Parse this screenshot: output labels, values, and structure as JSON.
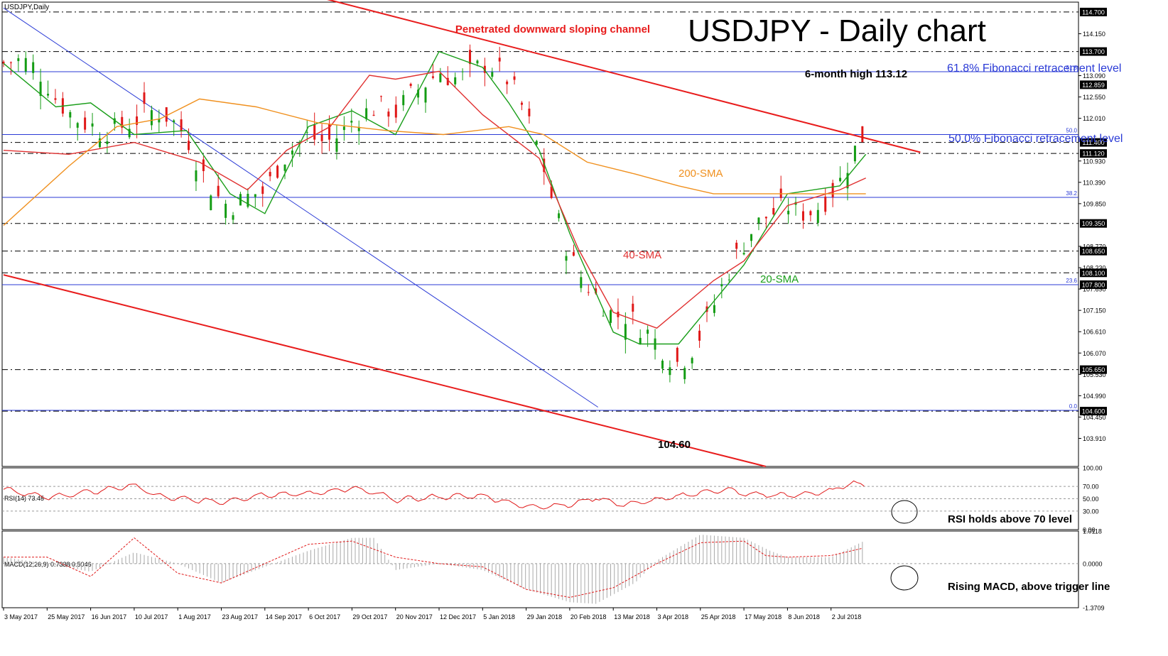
{
  "chart_data": {
    "type": "line",
    "symbol_label": "USDJPY,Daily",
    "title": "USDJPY - Daily chart",
    "ylim": [
      103.2,
      114.95
    ],
    "date_ticks": [
      "3 May 2017",
      "25 May 2017",
      "16 Jun 2017",
      "10 Jul 2017",
      "1 Aug 2017",
      "23 Aug 2017",
      "14 Sep 2017",
      "6 Oct 2017",
      "29 Oct 2017",
      "20 Nov 2017",
      "12 Dec 2017",
      "5 Jan 2018",
      "29 Jan 2018",
      "20 Feb 2018",
      "13 Mar 2018",
      "3 Apr 2018",
      "25 Apr 2018",
      "17 May 2018",
      "8 Jun 2018",
      "2 Jul 2018"
    ],
    "price_ticks": [
      "114.150",
      "113.090",
      "112.550",
      "112.010",
      "110.930",
      "110.390",
      "109.850",
      "108.770",
      "108.230",
      "107.690",
      "107.150",
      "106.610",
      "106.070",
      "105.530",
      "104.990",
      "104.450",
      "103.910"
    ],
    "price_ticks_values": [
      114.15,
      113.09,
      112.55,
      112.01,
      110.93,
      110.39,
      109.85,
      108.77,
      108.23,
      107.69,
      107.15,
      106.61,
      106.07,
      105.53,
      104.99,
      104.45,
      103.91
    ],
    "price_levels": [
      {
        "label": "114.700",
        "value": 114.7
      },
      {
        "label": "113.700",
        "value": 113.7
      },
      {
        "label": "111.400",
        "value": 111.4
      },
      {
        "label": "111.120",
        "value": 111.12
      },
      {
        "label": "109.350",
        "value": 109.35
      },
      {
        "label": "108.650",
        "value": 108.65
      },
      {
        "label": "108.100",
        "value": 108.1
      },
      {
        "label": "107.800",
        "value": 107.8
      },
      {
        "label": "105.650",
        "value": 105.65
      },
      {
        "label": "104.600",
        "value": 104.6
      }
    ],
    "current_price": {
      "label": "112.859",
      "value": 112.859
    },
    "fibonacci": [
      {
        "label": "61.8",
        "value": 113.19
      },
      {
        "label": "50.0",
        "value": 111.6
      },
      {
        "label": "38.2",
        "value": 110.01
      },
      {
        "label": "23.6",
        "value": 107.8
      },
      {
        "label": "0.0",
        "value": 104.62
      }
    ],
    "series": [
      {
        "name": "20-SMA",
        "color": "#1a9e1a",
        "points": [
          [
            0,
            113.4
          ],
          [
            1.2,
            112.3
          ],
          [
            2,
            112.4
          ],
          [
            3,
            111.6
          ],
          [
            4.2,
            111.7
          ],
          [
            5.2,
            110.1
          ],
          [
            6,
            109.6
          ],
          [
            7,
            111.8
          ],
          [
            8,
            112.2
          ],
          [
            9,
            111.6
          ],
          [
            10,
            113.7
          ],
          [
            11,
            113.3
          ],
          [
            11.6,
            112.4
          ],
          [
            12.3,
            111.2
          ],
          [
            13,
            109.1
          ],
          [
            14,
            106.6
          ],
          [
            14.6,
            106.3
          ],
          [
            15.5,
            106.3
          ],
          [
            17,
            108.3
          ],
          [
            18,
            110.1
          ],
          [
            19.2,
            110.3
          ],
          [
            19.8,
            111.1
          ]
        ]
      },
      {
        "name": "40-SMA",
        "color": "#e03030",
        "points": [
          [
            0,
            111.2
          ],
          [
            1.5,
            111.1
          ],
          [
            3,
            111.4
          ],
          [
            4.5,
            110.9
          ],
          [
            5.6,
            110.2
          ],
          [
            6.5,
            111.2
          ],
          [
            7.5,
            111.8
          ],
          [
            8.4,
            113.1
          ],
          [
            9,
            113.0
          ],
          [
            10,
            113.2
          ],
          [
            11,
            112.1
          ],
          [
            12.3,
            111.0
          ],
          [
            13.2,
            108.7
          ],
          [
            14,
            107.1
          ],
          [
            15,
            106.7
          ],
          [
            16.3,
            107.9
          ],
          [
            17,
            108.4
          ],
          [
            18,
            109.8
          ],
          [
            19.2,
            110.2
          ],
          [
            19.8,
            110.5
          ]
        ]
      },
      {
        "name": "200-SMA",
        "color": "#f0901e",
        "points": [
          [
            0,
            109.3
          ],
          [
            1.5,
            110.8
          ],
          [
            2.6,
            111.8
          ],
          [
            3.6,
            112.0
          ],
          [
            4.5,
            112.5
          ],
          [
            5.8,
            112.3
          ],
          [
            7.2,
            111.9
          ],
          [
            8.8,
            111.7
          ],
          [
            10.1,
            111.6
          ],
          [
            11.6,
            111.8
          ],
          [
            12.4,
            111.6
          ],
          [
            13.4,
            110.9
          ],
          [
            14.5,
            110.6
          ],
          [
            15.5,
            110.3
          ],
          [
            16.3,
            110.1
          ],
          [
            17.3,
            110.1
          ],
          [
            18.5,
            110.1
          ],
          [
            19.8,
            110.1
          ]
        ]
      }
    ],
    "channel_lines": [
      {
        "name": "channel-upper",
        "points": [
          [
            6.8,
            115.2
          ],
          [
            21.05,
            111.15
          ]
        ]
      },
      {
        "name": "channel-lower",
        "points": [
          [
            0,
            108.05
          ],
          [
            17.5,
            103.2
          ]
        ]
      },
      {
        "name": "diagonal-support",
        "points": [
          [
            0,
            114.8
          ],
          [
            13.65,
            104.7
          ]
        ]
      }
    ],
    "annotations": {
      "channel": "Penetrated downward sloping channel",
      "high": "6-month high 113.12",
      "fib618": "61.8% Fibonacci retracement level",
      "fib50": "50.0% Fibonacci retracement level",
      "sma200": "200-SMA",
      "sma40": "40-SMA",
      "sma20": "20-SMA",
      "low": "104.60"
    },
    "rsi": {
      "label": "RSI(14) 73.45",
      "ylim": [
        0,
        100
      ],
      "ticks": [
        {
          "label": "100.00",
          "value": 100
        },
        {
          "label": "70.00",
          "value": 70
        },
        {
          "label": "50.00",
          "value": 50
        },
        {
          "label": "30.00",
          "value": 30
        },
        {
          "label": "0.00",
          "value": 0
        }
      ],
      "guides": [
        70,
        50,
        30
      ],
      "values": [
        [
          0,
          66
        ],
        [
          1,
          52
        ],
        [
          2,
          61
        ],
        [
          3,
          72
        ],
        [
          3.5,
          55
        ],
        [
          4,
          50
        ],
        [
          5,
          45
        ],
        [
          6,
          57
        ],
        [
          7,
          58
        ],
        [
          8,
          67
        ],
        [
          8.6,
          58
        ],
        [
          9,
          48
        ],
        [
          10,
          53
        ],
        [
          11,
          55
        ],
        [
          12,
          37
        ],
        [
          13,
          40
        ],
        [
          13.6,
          52
        ],
        [
          14.2,
          40
        ],
        [
          15,
          48
        ],
        [
          16,
          60
        ],
        [
          16.6,
          65
        ],
        [
          17,
          58
        ],
        [
          18,
          55
        ],
        [
          19,
          62
        ],
        [
          19.4,
          75
        ],
        [
          19.8,
          73
        ]
      ],
      "annotation": "RSI holds above 70 level"
    },
    "macd": {
      "label": "MACD(12,26,9) 0.7338 0.5046",
      "ylim": [
        -1.3709,
        1.0118
      ],
      "ticks": [
        {
          "label": "1.0118",
          "value": 1.0118
        },
        {
          "label": "0.0000",
          "value": 0.0
        },
        {
          "label": "-1.3709",
          "value": -1.3709
        }
      ],
      "histogram": [
        [
          0,
          0.2
        ],
        [
          1,
          0.0
        ],
        [
          2,
          -0.25
        ],
        [
          3,
          0.35
        ],
        [
          4,
          0.0
        ],
        [
          5,
          -0.6
        ],
        [
          6,
          -0.1
        ],
        [
          7,
          0.4
        ],
        [
          8,
          0.8
        ],
        [
          8.5,
          0.8
        ],
        [
          9,
          -0.2
        ],
        [
          10,
          0.0
        ],
        [
          11,
          -0.2
        ],
        [
          12,
          -0.8
        ],
        [
          13,
          -1.2
        ],
        [
          13.6,
          -1.25
        ],
        [
          14.5,
          -0.6
        ],
        [
          15,
          0.1
        ],
        [
          16,
          0.9
        ],
        [
          17,
          0.8
        ],
        [
          17.6,
          0.4
        ],
        [
          18,
          0.2
        ],
        [
          19,
          0.2
        ],
        [
          19.8,
          0.73
        ]
      ],
      "signal": [
        [
          0,
          0.2
        ],
        [
          1,
          0.2
        ],
        [
          2,
          -0.4
        ],
        [
          3,
          0.8
        ],
        [
          4,
          -0.3
        ],
        [
          5,
          -0.6
        ],
        [
          6,
          0.0
        ],
        [
          7,
          0.6
        ],
        [
          8,
          0.7
        ],
        [
          9,
          0.2
        ],
        [
          10,
          0.0
        ],
        [
          11,
          -0.1
        ],
        [
          12,
          -0.8
        ],
        [
          13,
          -1.05
        ],
        [
          14,
          -0.75
        ],
        [
          15,
          0.0
        ],
        [
          16,
          0.65
        ],
        [
          17,
          0.7
        ],
        [
          17.5,
          0.25
        ],
        [
          18,
          0.2
        ],
        [
          19,
          0.25
        ],
        [
          19.8,
          0.5
        ]
      ],
      "annotation": "Rising MACD, above trigger line"
    }
  }
}
